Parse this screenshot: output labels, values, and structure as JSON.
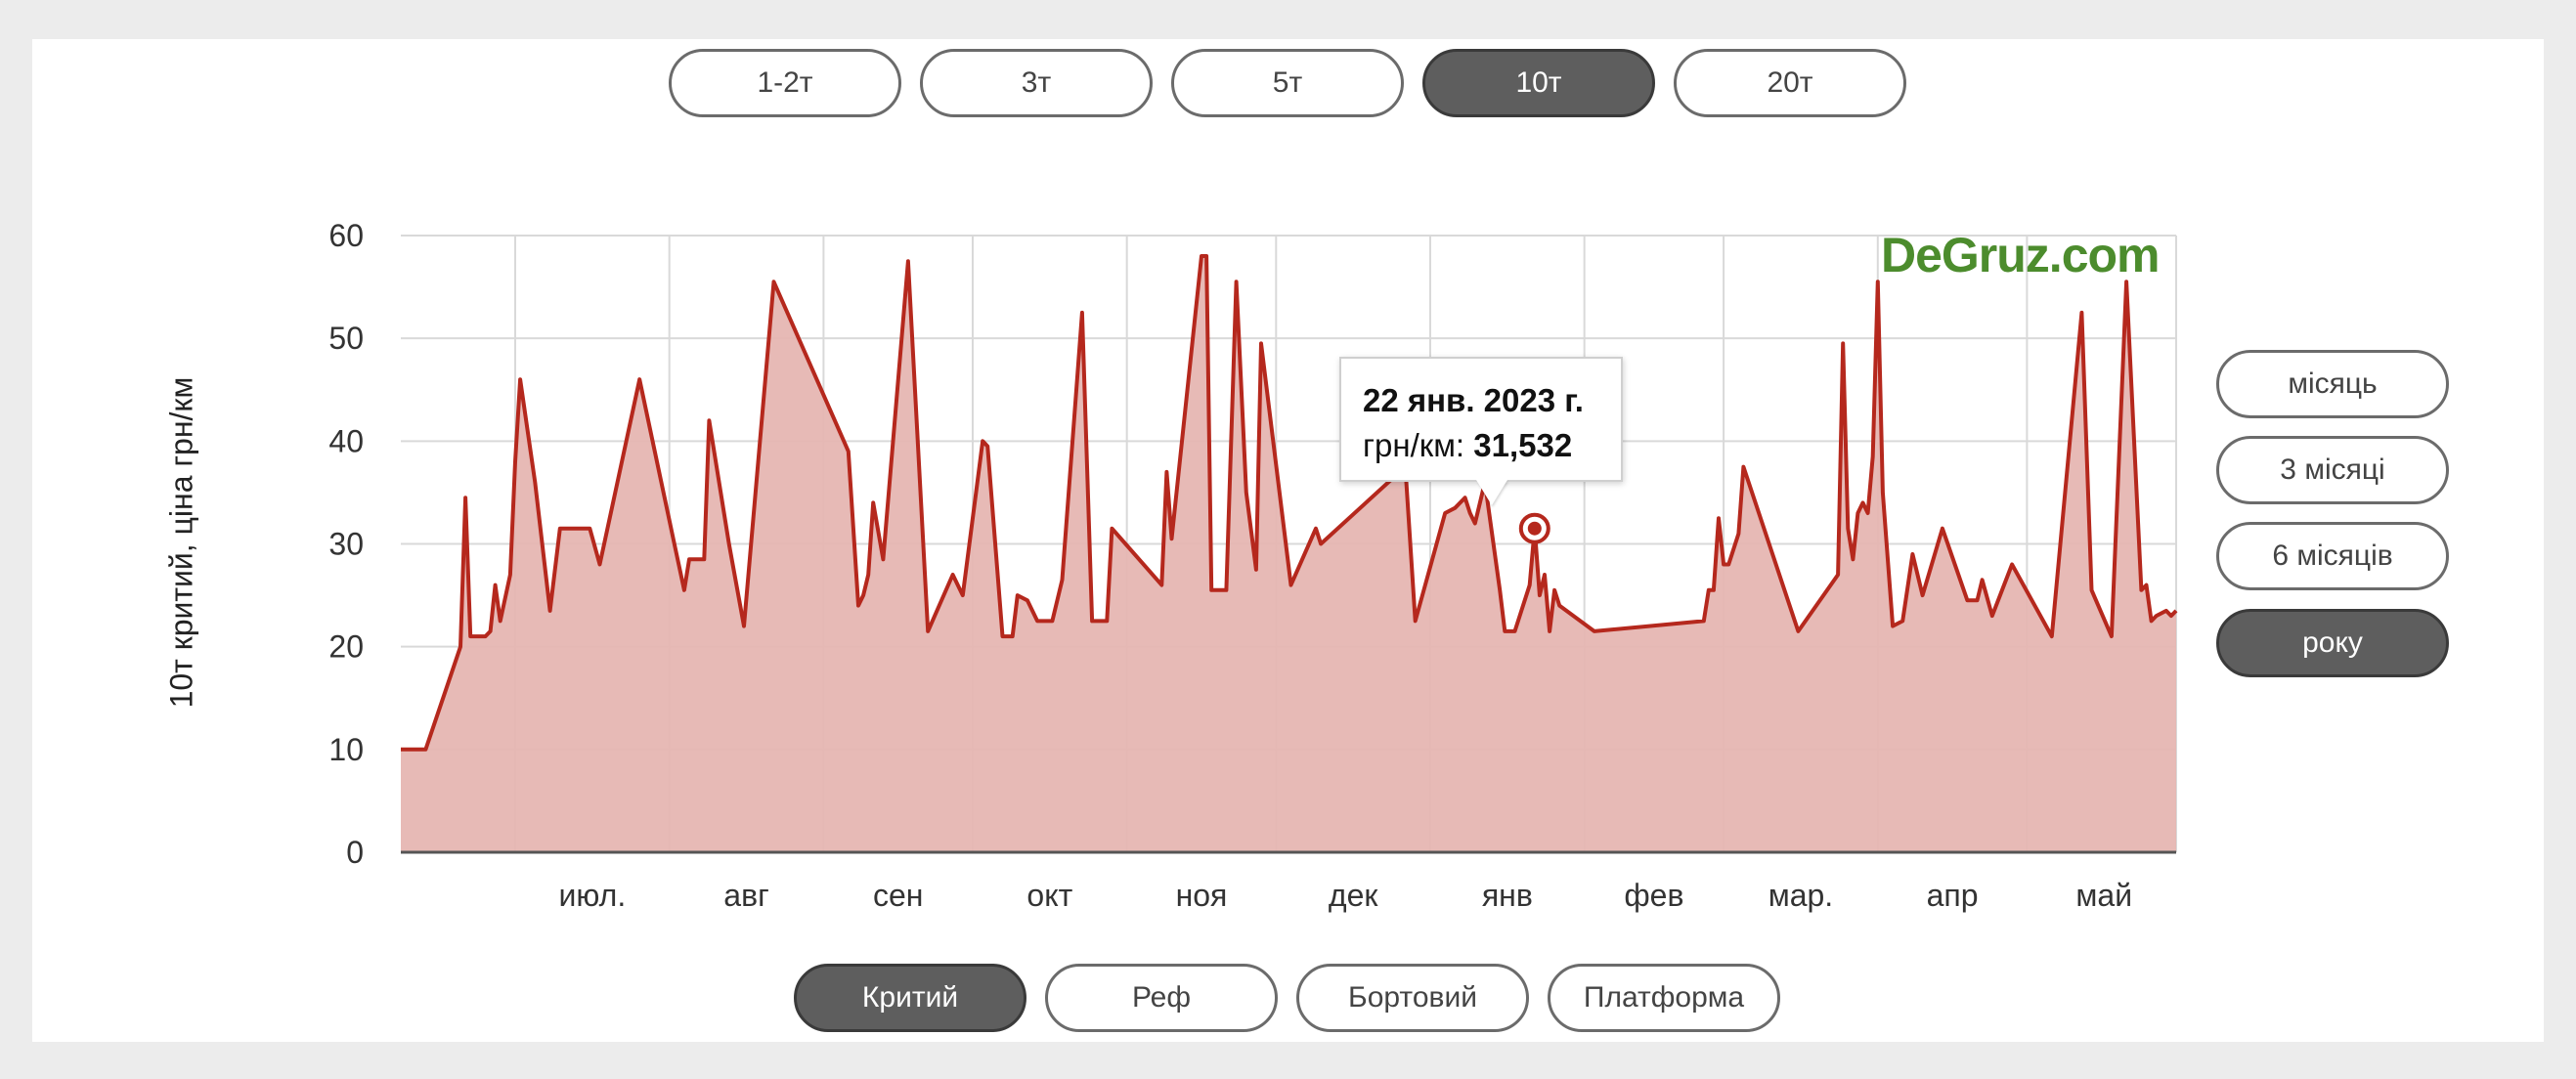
{
  "tonnage_tabs": [
    {
      "label": "1-2т",
      "active": false
    },
    {
      "label": "3т",
      "active": false
    },
    {
      "label": "5т",
      "active": false
    },
    {
      "label": "10т",
      "active": true
    },
    {
      "label": "20т",
      "active": false
    }
  ],
  "period_tabs": [
    {
      "label": "місяць",
      "active": false
    },
    {
      "label": "3 місяці",
      "active": false
    },
    {
      "label": "6 місяців",
      "active": false
    },
    {
      "label": "року",
      "active": true
    }
  ],
  "body_tabs": [
    {
      "label": "Критий",
      "active": true
    },
    {
      "label": "Реф",
      "active": false
    },
    {
      "label": "Бортовий",
      "active": false
    },
    {
      "label": "Платформа",
      "active": false
    }
  ],
  "brand": "DeGruz.com",
  "tooltip": {
    "date": "22 янв. 2023 г.",
    "label": "грн/км: ",
    "value": "31,532"
  },
  "colors": {
    "line": "#b5281d",
    "fill": "#e6b6b2",
    "active_button": "#5e5e5e",
    "brand": "#4c8c2d"
  },
  "chart_data": {
    "type": "area",
    "title": "",
    "xlabel": "",
    "ylabel": "10т критий, ціна грн/км",
    "ylim": [
      0,
      60
    ],
    "yticks": [
      0,
      10,
      20,
      30,
      40,
      50,
      60
    ],
    "grid": true,
    "x_month_labels": [
      "июл.",
      "авг",
      "сен",
      "окт",
      "ноя",
      "дек",
      "янв",
      "фев",
      "мар.",
      "апр",
      "май"
    ],
    "x_month_starts": [
      "2022-07-01",
      "2022-08-01",
      "2022-09-01",
      "2022-10-01",
      "2022-11-01",
      "2022-12-01",
      "2023-01-01",
      "2023-02-01",
      "2023-03-01",
      "2023-04-01",
      "2023-05-01"
    ],
    "x_range": [
      "2022-06-08",
      "2023-05-31"
    ],
    "highlight": {
      "x": "2023-01-22",
      "y": 31.5
    },
    "series": [
      {
        "points": [
          [
            "2022-06-08",
            10
          ],
          [
            "2022-06-13",
            10
          ],
          [
            "2022-06-20",
            20
          ],
          [
            "2022-06-21",
            34.5
          ],
          [
            "2022-06-22",
            21
          ],
          [
            "2022-06-25",
            21
          ],
          [
            "2022-06-26",
            21.5
          ],
          [
            "2022-06-27",
            26
          ],
          [
            "2022-06-28",
            22.5
          ],
          [
            "2022-06-30",
            27
          ],
          [
            "2022-07-01",
            38
          ],
          [
            "2022-07-02",
            46
          ],
          [
            "2022-07-05",
            36
          ],
          [
            "2022-07-08",
            23.5
          ],
          [
            "2022-07-10",
            31.5
          ],
          [
            "2022-07-13",
            31.5
          ],
          [
            "2022-07-16",
            31.5
          ],
          [
            "2022-07-18",
            28
          ],
          [
            "2022-07-26",
            46
          ],
          [
            "2022-08-02",
            30
          ],
          [
            "2022-08-04",
            25.5
          ],
          [
            "2022-08-05",
            28.5
          ],
          [
            "2022-08-08",
            28.5
          ],
          [
            "2022-08-09",
            42
          ],
          [
            "2022-08-13",
            30
          ],
          [
            "2022-08-16",
            22
          ],
          [
            "2022-08-22",
            55.5
          ],
          [
            "2022-09-06",
            39
          ],
          [
            "2022-09-08",
            24
          ],
          [
            "2022-09-09",
            25
          ],
          [
            "2022-09-10",
            27
          ],
          [
            "2022-09-11",
            34
          ],
          [
            "2022-09-13",
            28.5
          ],
          [
            "2022-09-18",
            57.5
          ],
          [
            "2022-09-22",
            21.5
          ],
          [
            "2022-09-27",
            27
          ],
          [
            "2022-09-29",
            25
          ],
          [
            "2022-10-03",
            40
          ],
          [
            "2022-10-04",
            39.5
          ],
          [
            "2022-10-07",
            21
          ],
          [
            "2022-10-09",
            21
          ],
          [
            "2022-10-10",
            25
          ],
          [
            "2022-10-12",
            24.5
          ],
          [
            "2022-10-14",
            22.5
          ],
          [
            "2022-10-17",
            22.5
          ],
          [
            "2022-10-19",
            26.5
          ],
          [
            "2022-10-23",
            52.5
          ],
          [
            "2022-10-25",
            22.5
          ],
          [
            "2022-10-28",
            22.5
          ],
          [
            "2022-10-29",
            31.5
          ],
          [
            "2022-11-08",
            26
          ],
          [
            "2022-11-09",
            37
          ],
          [
            "2022-11-10",
            30.5
          ],
          [
            "2022-11-16",
            58
          ],
          [
            "2022-11-17",
            58
          ],
          [
            "2022-11-18",
            25.5
          ],
          [
            "2022-11-21",
            25.5
          ],
          [
            "2022-11-23",
            55.5
          ],
          [
            "2022-11-25",
            35
          ],
          [
            "2022-11-27",
            27.5
          ],
          [
            "2022-11-28",
            49.5
          ],
          [
            "2022-12-04",
            26
          ],
          [
            "2022-12-09",
            31.5
          ],
          [
            "2022-12-10",
            30
          ],
          [
            "2022-12-27",
            37.5
          ],
          [
            "2022-12-29",
            22.5
          ],
          [
            "2023-01-04",
            33
          ],
          [
            "2023-01-06",
            33.5
          ],
          [
            "2023-01-08",
            34.5
          ],
          [
            "2023-01-09",
            33
          ],
          [
            "2023-01-10",
            32
          ],
          [
            "2023-01-12",
            36
          ],
          [
            "2023-01-15",
            25.5
          ],
          [
            "2023-01-16",
            21.5
          ],
          [
            "2023-01-18",
            21.5
          ],
          [
            "2023-01-21",
            26
          ],
          [
            "2023-01-22",
            31.5
          ],
          [
            "2023-01-23",
            25
          ],
          [
            "2023-01-24",
            27
          ],
          [
            "2023-01-25",
            21.5
          ],
          [
            "2023-01-26",
            25.5
          ],
          [
            "2023-01-27",
            24
          ],
          [
            "2023-02-03",
            21.5
          ],
          [
            "2023-02-25",
            22.5
          ],
          [
            "2023-02-26",
            25.5
          ],
          [
            "2023-02-27",
            25.5
          ],
          [
            "2023-02-28",
            32.5
          ],
          [
            "2023-03-01",
            28
          ],
          [
            "2023-03-02",
            28
          ],
          [
            "2023-03-04",
            31
          ],
          [
            "2023-03-05",
            37.5
          ],
          [
            "2023-03-16",
            21.5
          ],
          [
            "2023-03-24",
            27
          ],
          [
            "2023-03-25",
            49.5
          ],
          [
            "2023-03-26",
            31.5
          ],
          [
            "2023-03-27",
            28.5
          ],
          [
            "2023-03-28",
            33
          ],
          [
            "2023-03-29",
            34
          ],
          [
            "2023-03-30",
            33
          ],
          [
            "2023-03-31",
            38.5
          ],
          [
            "2023-04-01",
            55.5
          ],
          [
            "2023-04-02",
            35
          ],
          [
            "2023-04-04",
            22
          ],
          [
            "2023-04-06",
            22.5
          ],
          [
            "2023-04-08",
            29
          ],
          [
            "2023-04-10",
            25
          ],
          [
            "2023-04-14",
            31.5
          ],
          [
            "2023-04-19",
            24.5
          ],
          [
            "2023-04-21",
            24.5
          ],
          [
            "2023-04-22",
            26.5
          ],
          [
            "2023-04-24",
            23
          ],
          [
            "2023-04-28",
            28
          ],
          [
            "2023-05-06",
            21
          ],
          [
            "2023-05-12",
            52.5
          ],
          [
            "2023-05-14",
            25.5
          ],
          [
            "2023-05-18",
            21
          ],
          [
            "2023-05-21",
            55.5
          ],
          [
            "2023-05-24",
            25.5
          ],
          [
            "2023-05-25",
            26
          ],
          [
            "2023-05-26",
            22.5
          ],
          [
            "2023-05-27",
            23
          ],
          [
            "2023-05-29",
            23.5
          ],
          [
            "2023-05-30",
            23
          ],
          [
            "2023-05-31",
            23.5
          ]
        ]
      }
    ]
  }
}
